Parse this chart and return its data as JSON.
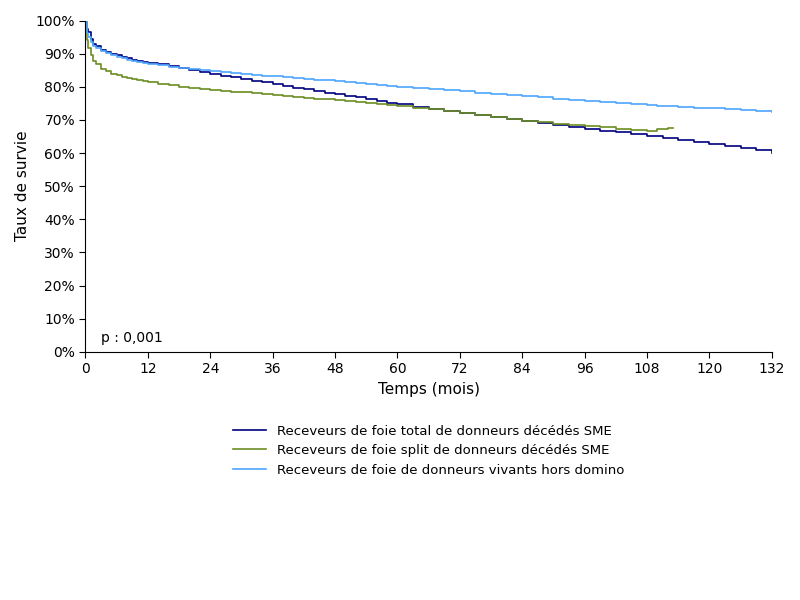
{
  "title": "",
  "xlabel": "Temps (mois)",
  "ylabel": "Taux de survie",
  "xlim": [
    0,
    132
  ],
  "ylim": [
    0,
    1.0
  ],
  "xticks": [
    0,
    12,
    24,
    36,
    48,
    60,
    72,
    84,
    96,
    108,
    120,
    132
  ],
  "yticks": [
    0.0,
    0.1,
    0.2,
    0.3,
    0.4,
    0.5,
    0.6,
    0.7,
    0.8,
    0.9,
    1.0
  ],
  "pvalue_text": "p : 0,001",
  "legend_labels": [
    "Receveurs de foie total de donneurs décédés SME",
    "Receveurs de foie split de donneurs décédés SME",
    "Receveurs de foie de donneurs vivants hors domino"
  ],
  "colors": {
    "dark_blue": "#000080",
    "olive_green": "#6B8E23",
    "light_blue": "#4da6ff"
  },
  "curve1_x": [
    0,
    0.3,
    0.5,
    1,
    1.5,
    2,
    3,
    4,
    5,
    6,
    7,
    8,
    9,
    10,
    11,
    12,
    14,
    16,
    18,
    20,
    22,
    24,
    26,
    28,
    30,
    32,
    34,
    36,
    38,
    40,
    42,
    44,
    46,
    48,
    50,
    52,
    54,
    56,
    58,
    60,
    63,
    66,
    69,
    72,
    75,
    78,
    81,
    84,
    87,
    90,
    93,
    96,
    99,
    102,
    105,
    108,
    111,
    114,
    117,
    120,
    123,
    126,
    129,
    132
  ],
  "curve1_y": [
    1.0,
    0.975,
    0.965,
    0.945,
    0.93,
    0.922,
    0.912,
    0.906,
    0.9,
    0.895,
    0.89,
    0.886,
    0.882,
    0.879,
    0.876,
    0.873,
    0.868,
    0.863,
    0.857,
    0.851,
    0.845,
    0.84,
    0.834,
    0.829,
    0.823,
    0.818,
    0.813,
    0.808,
    0.802,
    0.797,
    0.792,
    0.787,
    0.782,
    0.778,
    0.773,
    0.768,
    0.762,
    0.757,
    0.752,
    0.747,
    0.74,
    0.733,
    0.726,
    0.72,
    0.714,
    0.708,
    0.702,
    0.696,
    0.69,
    0.684,
    0.678,
    0.672,
    0.667,
    0.662,
    0.656,
    0.65,
    0.644,
    0.638,
    0.632,
    0.626,
    0.62,
    0.614,
    0.608,
    0.6
  ],
  "curve2_x": [
    0,
    0.3,
    0.5,
    1,
    1.5,
    2,
    3,
    4,
    5,
    6,
    7,
    8,
    9,
    10,
    11,
    12,
    14,
    16,
    18,
    20,
    22,
    24,
    26,
    28,
    30,
    32,
    34,
    36,
    38,
    40,
    42,
    44,
    46,
    48,
    50,
    52,
    54,
    56,
    58,
    60,
    63,
    66,
    69,
    72,
    75,
    78,
    81,
    84,
    87,
    90,
    93,
    96,
    99,
    102,
    105,
    108,
    110,
    112,
    113
  ],
  "curve2_y": [
    1.0,
    0.94,
    0.918,
    0.895,
    0.878,
    0.868,
    0.855,
    0.847,
    0.84,
    0.835,
    0.83,
    0.826,
    0.822,
    0.819,
    0.816,
    0.813,
    0.808,
    0.804,
    0.8,
    0.797,
    0.794,
    0.791,
    0.788,
    0.785,
    0.783,
    0.78,
    0.778,
    0.775,
    0.772,
    0.769,
    0.767,
    0.764,
    0.762,
    0.759,
    0.757,
    0.754,
    0.752,
    0.748,
    0.745,
    0.742,
    0.737,
    0.732,
    0.726,
    0.72,
    0.714,
    0.708,
    0.703,
    0.698,
    0.693,
    0.689,
    0.685,
    0.681,
    0.678,
    0.674,
    0.671,
    0.668,
    0.672,
    0.675,
    0.675
  ],
  "curve3_x": [
    0,
    0.3,
    0.5,
    1,
    1.5,
    2,
    3,
    4,
    5,
    6,
    7,
    8,
    9,
    10,
    11,
    12,
    14,
    16,
    18,
    20,
    22,
    24,
    26,
    28,
    30,
    32,
    34,
    36,
    38,
    40,
    42,
    44,
    46,
    48,
    50,
    52,
    54,
    56,
    58,
    60,
    63,
    66,
    69,
    72,
    75,
    78,
    81,
    84,
    87,
    90,
    93,
    96,
    99,
    102,
    105,
    108,
    110,
    114,
    117,
    120,
    123,
    126,
    129,
    132
  ],
  "curve3_y": [
    1.0,
    0.962,
    0.95,
    0.935,
    0.924,
    0.916,
    0.907,
    0.901,
    0.895,
    0.89,
    0.886,
    0.882,
    0.878,
    0.875,
    0.872,
    0.869,
    0.865,
    0.861,
    0.857,
    0.854,
    0.851,
    0.848,
    0.845,
    0.842,
    0.84,
    0.837,
    0.834,
    0.832,
    0.829,
    0.826,
    0.824,
    0.821,
    0.819,
    0.816,
    0.813,
    0.811,
    0.808,
    0.805,
    0.802,
    0.8,
    0.796,
    0.793,
    0.789,
    0.786,
    0.782,
    0.778,
    0.775,
    0.771,
    0.768,
    0.764,
    0.761,
    0.758,
    0.754,
    0.751,
    0.748,
    0.745,
    0.743,
    0.74,
    0.737,
    0.735,
    0.732,
    0.73,
    0.727,
    0.725
  ]
}
